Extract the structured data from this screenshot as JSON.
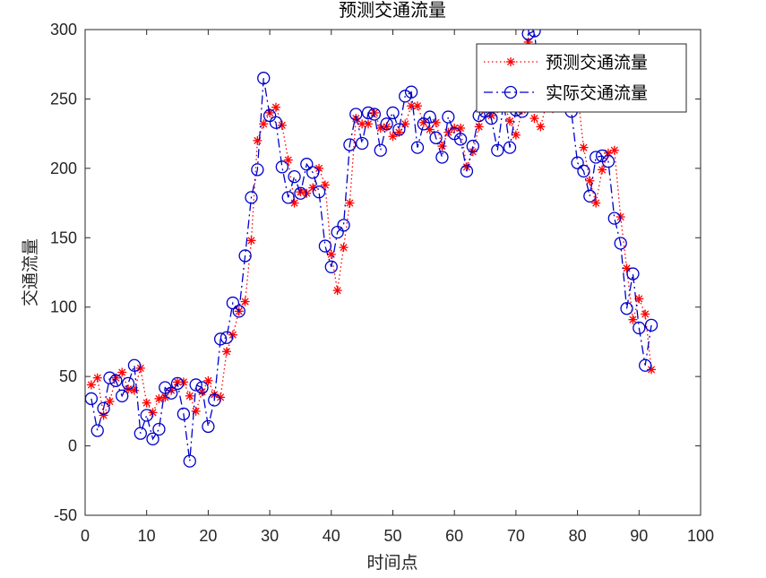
{
  "chart_data": {
    "type": "line",
    "title": "预测交通流量",
    "xlabel": "时间点",
    "ylabel": "交通流量",
    "xlim": [
      0,
      100
    ],
    "ylim": [
      -50,
      300
    ],
    "xticks": [
      "0",
      "10",
      "20",
      "30",
      "40",
      "50",
      "60",
      "70",
      "80",
      "90",
      "100"
    ],
    "yticks": [
      "-50",
      "0",
      "50",
      "100",
      "150",
      "200",
      "250",
      "300"
    ],
    "grid": false,
    "legend_position": "top-right",
    "x": [
      1,
      2,
      3,
      4,
      5,
      6,
      7,
      8,
      9,
      10,
      11,
      12,
      13,
      14,
      15,
      16,
      17,
      18,
      19,
      20,
      21,
      22,
      23,
      24,
      25,
      26,
      27,
      28,
      29,
      30,
      31,
      32,
      33,
      34,
      35,
      36,
      37,
      38,
      39,
      40,
      41,
      42,
      43,
      44,
      45,
      46,
      47,
      48,
      49,
      50,
      51,
      52,
      53,
      54,
      55,
      56,
      57,
      58,
      59,
      60,
      61,
      62,
      63,
      64,
      65,
      66,
      67,
      68,
      69,
      70,
      71,
      72,
      73,
      74,
      75,
      76,
      77,
      78,
      79,
      80,
      81,
      82,
      83,
      84,
      85,
      86,
      87,
      88,
      89,
      90,
      91,
      92
    ],
    "series": [
      {
        "name": "预测交通流量",
        "color": "#ff0000",
        "line_style": "dotted",
        "marker": "asterisk",
        "values": [
          44,
          49,
          22,
          32,
          49,
          53,
          41,
          40,
          56,
          31,
          24,
          34,
          35,
          40,
          46,
          46,
          36,
          25,
          39,
          47,
          37,
          35,
          68,
          80,
          97,
          104,
          148,
          220,
          232,
          240,
          244,
          231,
          206,
          175,
          183,
          182,
          186,
          200,
          188,
          138,
          112,
          143,
          175,
          236,
          232,
          232,
          240,
          229,
          230,
          223,
          226,
          232,
          245,
          245,
          233,
          228,
          233,
          216,
          226,
          229,
          229,
          201,
          212,
          230,
          249,
          238,
          243,
          248,
          234,
          224,
          242,
          291,
          236,
          230,
          247,
          243,
          249,
          244,
          249,
          254,
          215,
          191,
          175,
          199,
          211,
          213,
          165,
          128,
          91,
          106,
          95,
          55
        ]
      },
      {
        "name": "实际交通流量",
        "color": "#0000cc",
        "line_style": "dashdot",
        "marker": "circle",
        "values": [
          34,
          11,
          27,
          49,
          47,
          36,
          45,
          58,
          9,
          22,
          5,
          12,
          42,
          38,
          45,
          23,
          -11,
          44,
          42,
          14,
          33,
          77,
          78,
          103,
          97,
          137,
          179,
          199,
          265,
          238,
          233,
          201,
          179,
          194,
          182,
          203,
          197,
          183,
          144,
          129,
          154,
          159,
          217,
          239,
          218,
          240,
          239,
          213,
          232,
          240,
          228,
          252,
          255,
          215,
          232,
          237,
          222,
          208,
          237,
          225,
          221,
          198,
          216,
          238,
          241,
          236,
          213,
          248,
          215,
          242,
          241,
          297,
          299,
          254,
          258,
          253,
          264,
          251,
          241,
          204,
          198,
          180,
          208,
          209,
          205,
          164,
          146,
          99,
          124,
          85,
          58,
          87
        ]
      }
    ]
  }
}
